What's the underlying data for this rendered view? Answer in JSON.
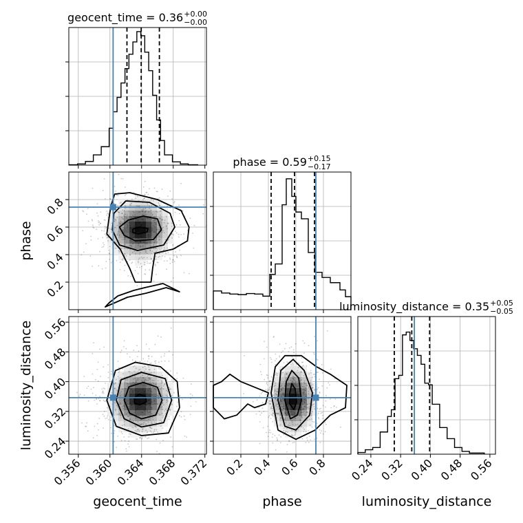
{
  "chart_data": {
    "type": "corner",
    "parameters": [
      "geocent_time",
      "phase",
      "luminosity_distance"
    ],
    "truth": {
      "geocent_time": 0.3604,
      "phase": 0.745,
      "luminosity_distance": 0.357
    },
    "colors": {
      "truth": "#4682b4",
      "hist": "#000000",
      "grid": "#b0b0b0"
    },
    "grid": true,
    "titles": [
      {
        "param": "geocent_time",
        "label": "geocent_time = 0.36",
        "plus": "+0.00",
        "minus": "−0.00"
      },
      {
        "param": "phase",
        "label": "phase = 0.59",
        "plus": "+0.15",
        "minus": "−0.17"
      },
      {
        "param": "luminosity_distance",
        "label": "luminosity_distance = 0.35",
        "plus": "+0.05",
        "minus": "−0.05"
      }
    ],
    "axes": {
      "geocent_time": {
        "range": [
          0.3548,
          0.3722
        ],
        "ticks": [
          0.356,
          0.36,
          0.364,
          0.368,
          0.372
        ],
        "tick_labels": [
          "0.356",
          "0.360",
          "0.364",
          "0.368",
          "0.372"
        ]
      },
      "phase": {
        "range": [
          0.0,
          1.0
        ],
        "ticks": [
          0.2,
          0.4,
          0.6,
          0.8
        ],
        "tick_labels": [
          "0.2",
          "0.4",
          "0.6",
          "0.8"
        ]
      },
      "luminosity_distance": {
        "range": [
          0.205,
          0.575
        ],
        "ticks": [
          0.24,
          0.32,
          0.4,
          0.48,
          0.56
        ],
        "tick_labels": [
          "0.24",
          "0.32",
          "0.40",
          "0.48",
          "0.56"
        ]
      }
    },
    "quantiles": {
      "geocent_time": [
        0.36215,
        0.36395,
        0.36625
      ],
      "phase": [
        0.42,
        0.59,
        0.735
      ],
      "luminosity_distance": [
        0.303,
        0.35,
        0.398
      ]
    },
    "hist1d": {
      "geocent_time": {
        "edges": [
          0.3549,
          0.3559,
          0.3569,
          0.3579,
          0.3589,
          0.3599,
          0.3604,
          0.3609,
          0.3614,
          0.3619,
          0.3624,
          0.3629,
          0.3634,
          0.3639,
          0.3644,
          0.3649,
          0.3654,
          0.3659,
          0.3664,
          0.3669,
          0.3679,
          0.3689,
          0.3699,
          0.3711
        ],
        "counts": [
          1,
          3,
          9,
          25,
          45,
          90,
          130,
          165,
          200,
          235,
          270,
          300,
          325,
          315,
          275,
          230,
          170,
          110,
          60,
          25,
          8,
          3,
          1
        ],
        "ylim": [
          0,
          335
        ]
      },
      "phase": {
        "edges": [
          0.0,
          0.06,
          0.12,
          0.18,
          0.24,
          0.3,
          0.36,
          0.41,
          0.45,
          0.5,
          0.53,
          0.57,
          0.6,
          0.64,
          0.69,
          0.74,
          0.79,
          0.85,
          0.92,
          0.96,
          1.0
        ],
        "counts": [
          36,
          32,
          30,
          29,
          31,
          30,
          26,
          68,
          88,
          202,
          252,
          218,
          188,
          175,
          110,
          72,
          62,
          52,
          38,
          25
        ],
        "ylim": [
          0,
          265
        ]
      },
      "luminosity_distance": {
        "edges": [
          0.205,
          0.225,
          0.245,
          0.265,
          0.285,
          0.295,
          0.305,
          0.315,
          0.325,
          0.335,
          0.345,
          0.355,
          0.365,
          0.375,
          0.385,
          0.395,
          0.405,
          0.425,
          0.445,
          0.465,
          0.485,
          0.505,
          0.545
        ],
        "counts": [
          3,
          8,
          12,
          40,
          68,
          80,
          136,
          142,
          215,
          220,
          205,
          190,
          178,
          162,
          128,
          125,
          90,
          48,
          28,
          12,
          5,
          2
        ],
        "ylim": [
          0,
          248
        ]
      }
    },
    "contours": {
      "phase_vs_geocent_time": [
        {
          "level": 1,
          "points": [
            [
              0.3629,
              0.56
            ],
            [
              0.3636,
              0.55
            ],
            [
              0.3647,
              0.565
            ],
            [
              0.3648,
              0.59
            ],
            [
              0.3637,
              0.6
            ],
            [
              0.3629,
              0.585
            ]
          ]
        },
        {
          "level": 2,
          "points": [
            [
              0.3618,
              0.54
            ],
            [
              0.3632,
              0.5
            ],
            [
              0.3655,
              0.51
            ],
            [
              0.3665,
              0.58
            ],
            [
              0.366,
              0.66
            ],
            [
              0.3642,
              0.68
            ],
            [
              0.3623,
              0.65
            ],
            [
              0.3612,
              0.6
            ]
          ]
        },
        {
          "level": 3,
          "points": [
            [
              0.3603,
              0.58
            ],
            [
              0.3612,
              0.47
            ],
            [
              0.3635,
              0.43
            ],
            [
              0.3668,
              0.47
            ],
            [
              0.3682,
              0.6
            ],
            [
              0.3676,
              0.7
            ],
            [
              0.365,
              0.78
            ],
            [
              0.362,
              0.79
            ],
            [
              0.3605,
              0.7
            ]
          ]
        },
        {
          "level": 4,
          "points": [
            [
              0.3596,
              0.55
            ],
            [
              0.3613,
              0.44
            ],
            [
              0.3625,
              0.3
            ],
            [
              0.3632,
              0.2
            ],
            [
              0.3652,
              0.2
            ],
            [
              0.3654,
              0.3
            ],
            [
              0.3657,
              0.41
            ],
            [
              0.368,
              0.44
            ],
            [
              0.3698,
              0.5
            ],
            [
              0.37,
              0.6
            ],
            [
              0.369,
              0.72
            ],
            [
              0.366,
              0.8
            ],
            [
              0.3625,
              0.85
            ],
            [
              0.3606,
              0.84
            ],
            [
              0.3601,
              0.75
            ]
          ]
        },
        {
          "level": 5,
          "points": [
            [
              0.3594,
              0.02
            ],
            [
              0.3606,
              0.05
            ],
            [
              0.3622,
              0.09
            ],
            [
              0.3646,
              0.12
            ],
            [
              0.3671,
              0.16
            ],
            [
              0.3688,
              0.13
            ],
            [
              0.3667,
              0.19
            ],
            [
              0.3644,
              0.16
            ],
            [
              0.363,
              0.14
            ],
            [
              0.361,
              0.1
            ],
            [
              0.3599,
              0.05
            ]
          ]
        }
      ],
      "luminosity_distance_vs_geocent_time": [
        {
          "level": 1,
          "points": [
            [
              0.3631,
              0.342
            ],
            [
              0.3638,
              0.338
            ],
            [
              0.3646,
              0.346
            ],
            [
              0.3645,
              0.36
            ],
            [
              0.3637,
              0.366
            ],
            [
              0.3631,
              0.356
            ]
          ]
        },
        {
          "level": 2,
          "points": [
            [
              0.3618,
              0.35
            ],
            [
              0.3625,
              0.315
            ],
            [
              0.364,
              0.3
            ],
            [
              0.3658,
              0.31
            ],
            [
              0.3666,
              0.35
            ],
            [
              0.366,
              0.385
            ],
            [
              0.3642,
              0.398
            ],
            [
              0.3624,
              0.386
            ]
          ]
        },
        {
          "level": 3,
          "points": [
            [
              0.3608,
              0.35
            ],
            [
              0.3618,
              0.3
            ],
            [
              0.364,
              0.278
            ],
            [
              0.3668,
              0.29
            ],
            [
              0.3678,
              0.35
            ],
            [
              0.367,
              0.408
            ],
            [
              0.364,
              0.425
            ],
            [
              0.3614,
              0.405
            ]
          ]
        },
        {
          "level": 4,
          "points": [
            [
              0.3596,
              0.35
            ],
            [
              0.3608,
              0.28
            ],
            [
              0.364,
              0.255
            ],
            [
              0.3674,
              0.262
            ],
            [
              0.3688,
              0.33
            ],
            [
              0.3685,
              0.4
            ],
            [
              0.3664,
              0.44
            ],
            [
              0.3632,
              0.452
            ],
            [
              0.3607,
              0.43
            ]
          ]
        }
      ],
      "luminosity_distance_vs_phase": [
        {
          "level": 1,
          "points": [
            [
              0.555,
              0.34
            ],
            [
              0.585,
              0.325
            ],
            [
              0.605,
              0.345
            ],
            [
              0.595,
              0.38
            ],
            [
              0.57,
              0.395
            ],
            [
              0.555,
              0.37
            ]
          ]
        },
        {
          "level": 2,
          "points": [
            [
              0.52,
              0.35
            ],
            [
              0.56,
              0.3
            ],
            [
              0.61,
              0.31
            ],
            [
              0.64,
              0.35
            ],
            [
              0.62,
              0.41
            ],
            [
              0.57,
              0.43
            ],
            [
              0.53,
              0.4
            ]
          ]
        },
        {
          "level": 3,
          "points": [
            [
              0.47,
              0.35
            ],
            [
              0.52,
              0.28
            ],
            [
              0.6,
              0.27
            ],
            [
              0.7,
              0.31
            ],
            [
              0.72,
              0.37
            ],
            [
              0.66,
              0.43
            ],
            [
              0.58,
              0.46
            ],
            [
              0.49,
              0.43
            ]
          ]
        },
        {
          "level": 4,
          "points": [
            [
              0.42,
              0.37
            ],
            [
              0.47,
              0.27
            ],
            [
              0.6,
              0.245
            ],
            [
              0.74,
              0.27
            ],
            [
              0.85,
              0.31
            ],
            [
              0.96,
              0.33
            ],
            [
              0.97,
              0.39
            ],
            [
              0.85,
              0.42
            ],
            [
              0.75,
              0.44
            ],
            [
              0.64,
              0.47
            ],
            [
              0.52,
              0.47
            ],
            [
              0.45,
              0.44
            ]
          ]
        },
        {
          "level": 5,
          "points": [
            [
              0.0,
              0.33
            ],
            [
              0.08,
              0.3
            ],
            [
              0.17,
              0.31
            ],
            [
              0.25,
              0.34
            ],
            [
              0.3,
              0.33
            ],
            [
              0.38,
              0.34
            ],
            [
              0.4,
              0.37
            ],
            [
              0.3,
              0.385
            ],
            [
              0.2,
              0.4
            ],
            [
              0.12,
              0.42
            ],
            [
              0.06,
              0.4
            ],
            [
              0.0,
              0.39
            ]
          ]
        }
      ]
    },
    "density_peaks": {
      "phase_vs_geocent_time": {
        "center": [
          0.3638,
          0.58
        ],
        "sigma": [
          0.0018,
          0.1
        ]
      },
      "luminosity_distance_vs_geocent_time": {
        "center": [
          0.3638,
          0.352
        ],
        "sigma": [
          0.0018,
          0.04
        ]
      },
      "luminosity_distance_vs_phase": {
        "center": [
          0.58,
          0.352
        ],
        "sigma": [
          0.075,
          0.04
        ]
      }
    }
  }
}
